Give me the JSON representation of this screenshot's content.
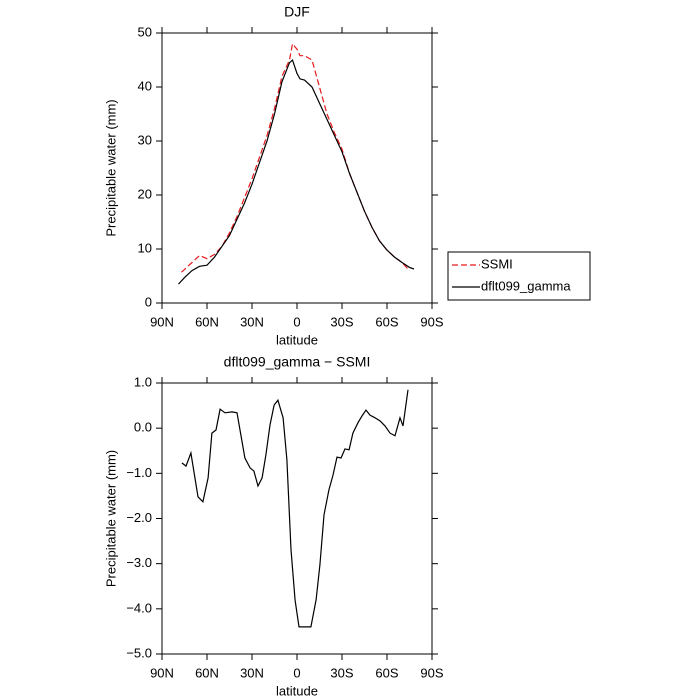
{
  "chart_data": [
    {
      "type": "line",
      "title": "DJF",
      "xlabel": "latitude",
      "ylabel": "Precipitable water (mm)",
      "xlim": [
        90,
        -90
      ],
      "xticks": [
        {
          "value": 90,
          "label": "90N"
        },
        {
          "value": 60,
          "label": "60N"
        },
        {
          "value": 30,
          "label": "30N"
        },
        0,
        {
          "value": -30,
          "label": "30S"
        },
        {
          "value": -60,
          "label": "60S"
        },
        {
          "value": -90,
          "label": "90S"
        }
      ],
      "ylim": [
        0,
        50
      ],
      "yticks": [
        0,
        10,
        20,
        30,
        40,
        50
      ],
      "legend": "right",
      "series": [
        {
          "name": "SSMI",
          "color": "#e41a1c",
          "dash": true,
          "x": [
            77,
            70,
            65,
            60,
            55,
            50,
            45,
            40,
            35,
            30,
            25,
            20,
            15,
            10,
            5,
            3,
            0,
            -2,
            -5,
            -10,
            -15,
            -20,
            -25,
            -30,
            -35,
            -40,
            -45,
            -50,
            -55,
            -60,
            -65,
            -70,
            -75
          ],
          "values": [
            5.7,
            7.5,
            8.8,
            8.2,
            9,
            10.5,
            13,
            16,
            19.5,
            23,
            27,
            31,
            36,
            42,
            45,
            48,
            47,
            45.8,
            45.8,
            45,
            40,
            35,
            31.5,
            28.5,
            24,
            20.5,
            17,
            14,
            11.5,
            9.8,
            8.5,
            7.5,
            6
          ]
        },
        {
          "name": "dflt099_gamma",
          "color": "#000000",
          "dash": false,
          "x": [
            79,
            75,
            70,
            65,
            60,
            55,
            50,
            45,
            40,
            35,
            30,
            25,
            20,
            15,
            10,
            5,
            3,
            0,
            -2,
            -5,
            -10,
            -15,
            -20,
            -25,
            -30,
            -35,
            -40,
            -45,
            -50,
            -55,
            -60,
            -65,
            -70,
            -75,
            -78
          ],
          "values": [
            3.5,
            4.7,
            6,
            6.8,
            7,
            8.5,
            10.5,
            12.5,
            15.5,
            18.5,
            22,
            26,
            30,
            35,
            41,
            44.5,
            45,
            42.5,
            41.5,
            41.3,
            40,
            37,
            34,
            31,
            28,
            24,
            20.5,
            17,
            14,
            11.5,
            9.8,
            8.5,
            7.5,
            6.6,
            6.3
          ]
        }
      ]
    },
    {
      "type": "line",
      "title": "dflt099_gamma − SSMI",
      "xlabel": "latitude",
      "ylabel": "Precipitable water (mm)",
      "xlim": [
        90,
        -90
      ],
      "xticks": [
        {
          "value": 90,
          "label": "90N"
        },
        {
          "value": 60,
          "label": "60N"
        },
        {
          "value": 30,
          "label": "30N"
        },
        0,
        {
          "value": -30,
          "label": "30S"
        },
        {
          "value": -60,
          "label": "60S"
        },
        {
          "value": -90,
          "label": "90S"
        }
      ],
      "ylim": [
        -5,
        1
      ],
      "yticks": [
        {
          "value": 1,
          "label": "1.0"
        },
        {
          "value": 0,
          "label": "0.0"
        },
        {
          "value": -1,
          "label": "−1.0"
        },
        {
          "value": -2,
          "label": "−2.0"
        },
        {
          "value": -3,
          "label": "−3.0"
        },
        {
          "value": -4,
          "label": "−4.0"
        },
        {
          "value": -5,
          "label": "−5.0"
        }
      ],
      "series": [
        {
          "color": "#000000",
          "dash": false,
          "x": [
            76.7,
            74,
            70.7,
            66,
            62.7,
            59.3,
            56.7,
            54,
            51.3,
            48,
            43.3,
            40,
            34.7,
            31.3,
            28.7,
            26,
            23.3,
            20.7,
            18,
            15.3,
            12.7,
            9.3,
            6.7,
            4,
            1.3,
            -1.3,
            -4.7,
            -9.3,
            -12.7,
            -15.3,
            -18,
            -21.3,
            -24,
            -26.7,
            -29.3,
            -32,
            -34.7,
            -37.3,
            -40.7,
            -43.3,
            -46,
            -48.7,
            -52,
            -55.3,
            -58.7,
            -62,
            -65.3,
            -68.7,
            -70.7,
            -74
          ],
          "values": [
            -0.77,
            -0.84,
            -0.55,
            -1.52,
            -1.63,
            -1.1,
            -0.11,
            -0.04,
            0.42,
            0.34,
            0.36,
            0.34,
            -0.66,
            -0.88,
            -0.95,
            -1.28,
            -1.1,
            -0.59,
            0.07,
            0.51,
            0.62,
            0.23,
            -0.7,
            -2.69,
            -3.81,
            -4.4,
            -4.4,
            -4.4,
            -3.8,
            -3.03,
            -1.92,
            -1.37,
            -1.04,
            -0.64,
            -0.66,
            -0.46,
            -0.48,
            -0.11,
            0.12,
            0.27,
            0.4,
            0.29,
            0.23,
            0.16,
            0.05,
            -0.11,
            -0.17,
            0.23,
            0.05,
            0.85
          ]
        }
      ]
    }
  ]
}
